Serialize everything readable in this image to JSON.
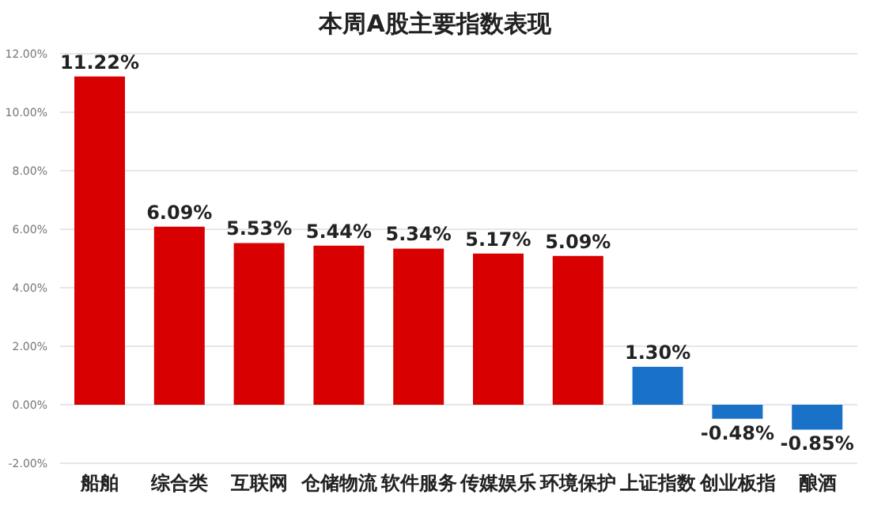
{
  "chart_data": {
    "type": "bar",
    "title": "本周A股主要指数表现",
    "categories": [
      "船舶",
      "综合类",
      "互联网",
      "仓储物流",
      "软件服务",
      "传媒娱乐",
      "环境保护",
      "上证指数",
      "创业板指",
      "酿酒"
    ],
    "values": [
      11.22,
      6.09,
      5.53,
      5.44,
      5.34,
      5.17,
      5.09,
      1.3,
      -0.48,
      -0.85
    ],
    "colors": [
      "#d80000",
      "#d80000",
      "#d80000",
      "#d80000",
      "#d80000",
      "#d80000",
      "#d80000",
      "#1a72c8",
      "#1a72c8",
      "#1a72c8"
    ],
    "value_labels": [
      "11.22%",
      "6.09%",
      "5.53%",
      "5.44%",
      "5.34%",
      "5.17%",
      "5.09%",
      "1.30%",
      "-0.48%",
      "-0.85%"
    ],
    "ylim": [
      -2,
      12
    ],
    "yticks": [
      {
        "value": -2,
        "label": "-2.00%"
      },
      {
        "value": 0,
        "label": "0.00%"
      },
      {
        "value": 2,
        "label": "2.00%"
      },
      {
        "value": 4,
        "label": "4.00%"
      },
      {
        "value": 6,
        "label": "6.00%"
      },
      {
        "value": 8,
        "label": "8.00%"
      },
      {
        "value": 10,
        "label": "10.00%"
      },
      {
        "value": 12,
        "label": "12.00%"
      }
    ],
    "grid": "y"
  }
}
